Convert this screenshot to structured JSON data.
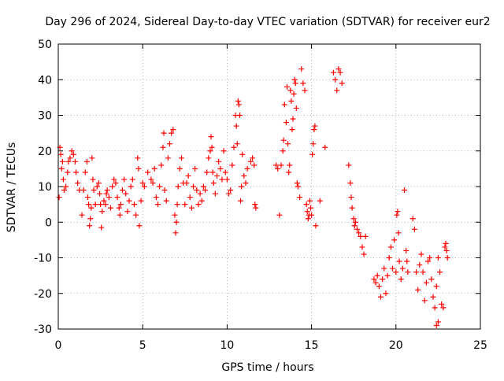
{
  "chart_data": {
    "type": "scatter",
    "title": "Day 296 of 2024, Sidereal Day-to-day VTEC variation (SDTVAR) for receiver eur2",
    "xlabel": "GPS time / hours",
    "ylabel": "SDTVAR / TECUs",
    "xlim": [
      0,
      25
    ],
    "ylim": [
      -30,
      50
    ],
    "x_ticks": [
      0,
      5,
      10,
      15,
      20,
      25
    ],
    "y_ticks": [
      -30,
      -20,
      -10,
      0,
      10,
      20,
      30,
      40,
      50
    ],
    "grid": true,
    "marker": "+",
    "series_color": "#ff0000",
    "series": [
      {
        "name": "SDTVAR",
        "points": [
          [
            0.05,
            7
          ],
          [
            0.1,
            21
          ],
          [
            0.15,
            19
          ],
          [
            0.2,
            15
          ],
          [
            0.25,
            17
          ],
          [
            0.3,
            12
          ],
          [
            0.35,
            9
          ],
          [
            0.45,
            10
          ],
          [
            0.55,
            14
          ],
          [
            0.6,
            17
          ],
          [
            0.7,
            18
          ],
          [
            0.8,
            20
          ],
          [
            0.9,
            19
          ],
          [
            1.0,
            17
          ],
          [
            1.05,
            14
          ],
          [
            1.15,
            11
          ],
          [
            1.25,
            9
          ],
          [
            1.4,
            2
          ],
          [
            1.5,
            9
          ],
          [
            1.6,
            14
          ],
          [
            1.7,
            17
          ],
          [
            1.75,
            7
          ],
          [
            1.8,
            5
          ],
          [
            1.85,
            -1
          ],
          [
            1.9,
            1
          ],
          [
            1.95,
            4
          ],
          [
            2.0,
            18
          ],
          [
            2.05,
            12
          ],
          [
            2.1,
            9
          ],
          [
            2.2,
            5
          ],
          [
            2.3,
            10
          ],
          [
            2.4,
            11
          ],
          [
            2.45,
            8
          ],
          [
            2.5,
            5
          ],
          [
            2.55,
            -1.5
          ],
          [
            2.6,
            3
          ],
          [
            2.7,
            6
          ],
          [
            2.8,
            5
          ],
          [
            2.85,
            8
          ],
          [
            2.9,
            9
          ],
          [
            3.0,
            7
          ],
          [
            3.1,
            4
          ],
          [
            3.2,
            10
          ],
          [
            3.3,
            12
          ],
          [
            3.4,
            11
          ],
          [
            3.5,
            7
          ],
          [
            3.6,
            4
          ],
          [
            3.65,
            2
          ],
          [
            3.7,
            5
          ],
          [
            3.8,
            9
          ],
          [
            3.9,
            12
          ],
          [
            4.0,
            8
          ],
          [
            4.1,
            3
          ],
          [
            4.2,
            6
          ],
          [
            4.3,
            10
          ],
          [
            4.4,
            12
          ],
          [
            4.5,
            5
          ],
          [
            4.6,
            2
          ],
          [
            4.7,
            18
          ],
          [
            4.75,
            15
          ],
          [
            4.8,
            -1
          ],
          [
            4.9,
            6
          ],
          [
            5.0,
            11
          ],
          [
            5.1,
            10
          ],
          [
            5.3,
            14
          ],
          [
            5.5,
            12
          ],
          [
            5.6,
            11
          ],
          [
            5.7,
            15
          ],
          [
            5.8,
            7
          ],
          [
            5.9,
            5
          ],
          [
            6.0,
            10
          ],
          [
            6.1,
            16
          ],
          [
            6.2,
            21
          ],
          [
            6.25,
            25
          ],
          [
            6.3,
            9
          ],
          [
            6.4,
            6
          ],
          [
            6.5,
            18
          ],
          [
            6.6,
            22
          ],
          [
            6.7,
            25
          ],
          [
            6.8,
            26
          ],
          [
            6.9,
            2
          ],
          [
            6.95,
            -3
          ],
          [
            7.0,
            0
          ],
          [
            7.05,
            5
          ],
          [
            7.1,
            10
          ],
          [
            7.2,
            15
          ],
          [
            7.3,
            18
          ],
          [
            7.4,
            11
          ],
          [
            7.5,
            5
          ],
          [
            7.6,
            11
          ],
          [
            7.7,
            13
          ],
          [
            7.8,
            7
          ],
          [
            7.9,
            4
          ],
          [
            8.0,
            10
          ],
          [
            8.1,
            15
          ],
          [
            8.2,
            9
          ],
          [
            8.3,
            5
          ],
          [
            8.4,
            8
          ],
          [
            8.5,
            6
          ],
          [
            8.6,
            10
          ],
          [
            8.7,
            9
          ],
          [
            8.8,
            14
          ],
          [
            8.9,
            18
          ],
          [
            9.0,
            20
          ],
          [
            9.05,
            24
          ],
          [
            9.1,
            21
          ],
          [
            9.15,
            14
          ],
          [
            9.2,
            11
          ],
          [
            9.3,
            8
          ],
          [
            9.4,
            13
          ],
          [
            9.5,
            17
          ],
          [
            9.6,
            15
          ],
          [
            9.7,
            12
          ],
          [
            9.8,
            20
          ],
          [
            9.9,
            14
          ],
          [
            10.0,
            12
          ],
          [
            10.1,
            8
          ],
          [
            10.2,
            9
          ],
          [
            10.3,
            16
          ],
          [
            10.4,
            21
          ],
          [
            10.5,
            30
          ],
          [
            10.55,
            27
          ],
          [
            10.6,
            22
          ],
          [
            10.65,
            34
          ],
          [
            10.7,
            33
          ],
          [
            10.75,
            30
          ],
          [
            10.8,
            6
          ],
          [
            10.85,
            10
          ],
          [
            10.9,
            19
          ],
          [
            11.0,
            13
          ],
          [
            11.1,
            11
          ],
          [
            11.2,
            15
          ],
          [
            11.4,
            17
          ],
          [
            11.5,
            18
          ],
          [
            11.6,
            16
          ],
          [
            11.65,
            5
          ],
          [
            11.7,
            4
          ],
          [
            12.9,
            16
          ],
          [
            13.0,
            15
          ],
          [
            13.1,
            2
          ],
          [
            13.2,
            16
          ],
          [
            13.3,
            20
          ],
          [
            13.35,
            23
          ],
          [
            13.4,
            33
          ],
          [
            13.5,
            28
          ],
          [
            13.55,
            38
          ],
          [
            13.6,
            22
          ],
          [
            13.65,
            14
          ],
          [
            13.7,
            16
          ],
          [
            13.75,
            37
          ],
          [
            13.8,
            34
          ],
          [
            13.85,
            26
          ],
          [
            13.9,
            29
          ],
          [
            13.95,
            36
          ],
          [
            14.0,
            40
          ],
          [
            14.05,
            39
          ],
          [
            14.1,
            32
          ],
          [
            14.15,
            11
          ],
          [
            14.2,
            10
          ],
          [
            14.3,
            7
          ],
          [
            14.4,
            43
          ],
          [
            14.5,
            39
          ],
          [
            14.6,
            37
          ],
          [
            14.7,
            5
          ],
          [
            14.75,
            3
          ],
          [
            14.8,
            1
          ],
          [
            14.85,
            2
          ],
          [
            14.9,
            6
          ],
          [
            14.95,
            4
          ],
          [
            15.0,
            2
          ],
          [
            15.05,
            19
          ],
          [
            15.1,
            22
          ],
          [
            15.15,
            26
          ],
          [
            15.2,
            27
          ],
          [
            15.25,
            -1
          ],
          [
            15.5,
            6
          ],
          [
            15.8,
            21
          ],
          [
            16.3,
            42
          ],
          [
            16.4,
            40
          ],
          [
            16.5,
            37
          ],
          [
            16.6,
            43
          ],
          [
            16.7,
            42
          ],
          [
            16.8,
            39
          ],
          [
            17.2,
            16
          ],
          [
            17.3,
            11
          ],
          [
            17.35,
            7
          ],
          [
            17.4,
            4
          ],
          [
            17.5,
            1
          ],
          [
            17.55,
            -1
          ],
          [
            17.6,
            0
          ],
          [
            17.7,
            -2
          ],
          [
            17.8,
            -3
          ],
          [
            17.9,
            -4
          ],
          [
            18.0,
            -7
          ],
          [
            18.1,
            -9
          ],
          [
            18.2,
            -4
          ],
          [
            18.7,
            -16
          ],
          [
            18.8,
            -17
          ],
          [
            18.9,
            -15
          ],
          [
            19.0,
            -18
          ],
          [
            19.1,
            -21
          ],
          [
            19.2,
            -16
          ],
          [
            19.3,
            -13
          ],
          [
            19.4,
            -20
          ],
          [
            19.5,
            -15
          ],
          [
            19.6,
            -10
          ],
          [
            19.7,
            -7
          ],
          [
            19.8,
            -13
          ],
          [
            19.9,
            -5
          ],
          [
            20.0,
            -14
          ],
          [
            20.05,
            2
          ],
          [
            20.1,
            3
          ],
          [
            20.15,
            -3
          ],
          [
            20.2,
            -11
          ],
          [
            20.3,
            -16
          ],
          [
            20.4,
            -13
          ],
          [
            20.5,
            9
          ],
          [
            20.6,
            -8
          ],
          [
            20.65,
            -11
          ],
          [
            20.7,
            -14
          ],
          [
            21.0,
            1
          ],
          [
            21.1,
            -2
          ],
          [
            21.2,
            -14
          ],
          [
            21.3,
            -19
          ],
          [
            21.4,
            -12
          ],
          [
            21.5,
            -9
          ],
          [
            21.6,
            -14
          ],
          [
            21.7,
            -22
          ],
          [
            21.8,
            -17
          ],
          [
            21.9,
            -11
          ],
          [
            22.0,
            -10
          ],
          [
            22.1,
            -16
          ],
          [
            22.2,
            -21
          ],
          [
            22.3,
            -24
          ],
          [
            22.4,
            -18
          ],
          [
            22.5,
            -10
          ],
          [
            22.6,
            -14
          ],
          [
            22.4,
            -29
          ],
          [
            22.5,
            -28
          ],
          [
            22.7,
            -23
          ],
          [
            22.8,
            -24
          ],
          [
            22.9,
            -7
          ],
          [
            22.95,
            -6
          ],
          [
            23.0,
            -8
          ],
          [
            23.05,
            -10
          ]
        ]
      }
    ]
  }
}
